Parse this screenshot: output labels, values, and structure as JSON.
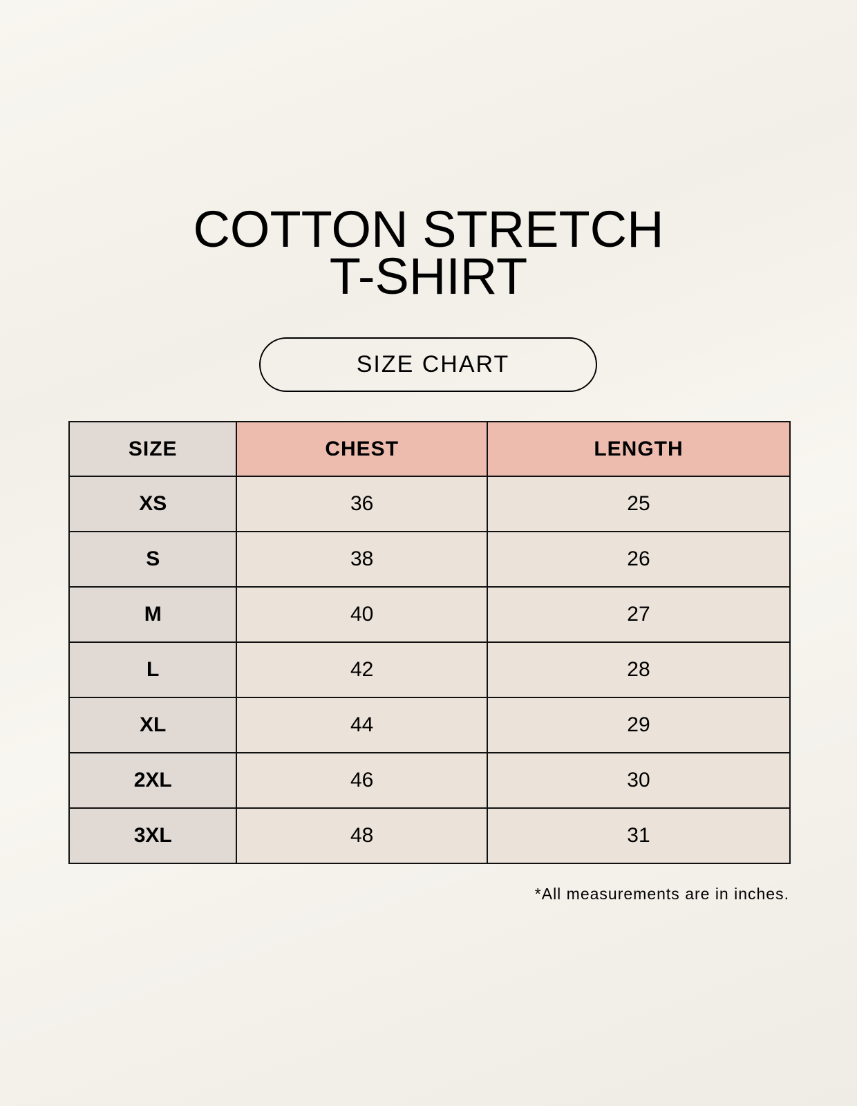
{
  "title_line1": "COTTON STRETCH",
  "title_line2": "T-SHIRT",
  "subtitle": "SIZE CHART",
  "table": {
    "headers": [
      "SIZE",
      "CHEST",
      "LENGTH"
    ],
    "rows": [
      [
        "XS",
        "36",
        "25"
      ],
      [
        "S",
        "38",
        "26"
      ],
      [
        "M",
        "40",
        "27"
      ],
      [
        "L",
        "42",
        "28"
      ],
      [
        "XL",
        "44",
        "29"
      ],
      [
        "2XL",
        "46",
        "30"
      ],
      [
        "3XL",
        "48",
        "31"
      ]
    ]
  },
  "footnote": "*All measurements are in inches.",
  "colors": {
    "size_column": "#e0d9d4",
    "header_accent": "#edbcaf",
    "value_cells": "#ebe3d9"
  }
}
